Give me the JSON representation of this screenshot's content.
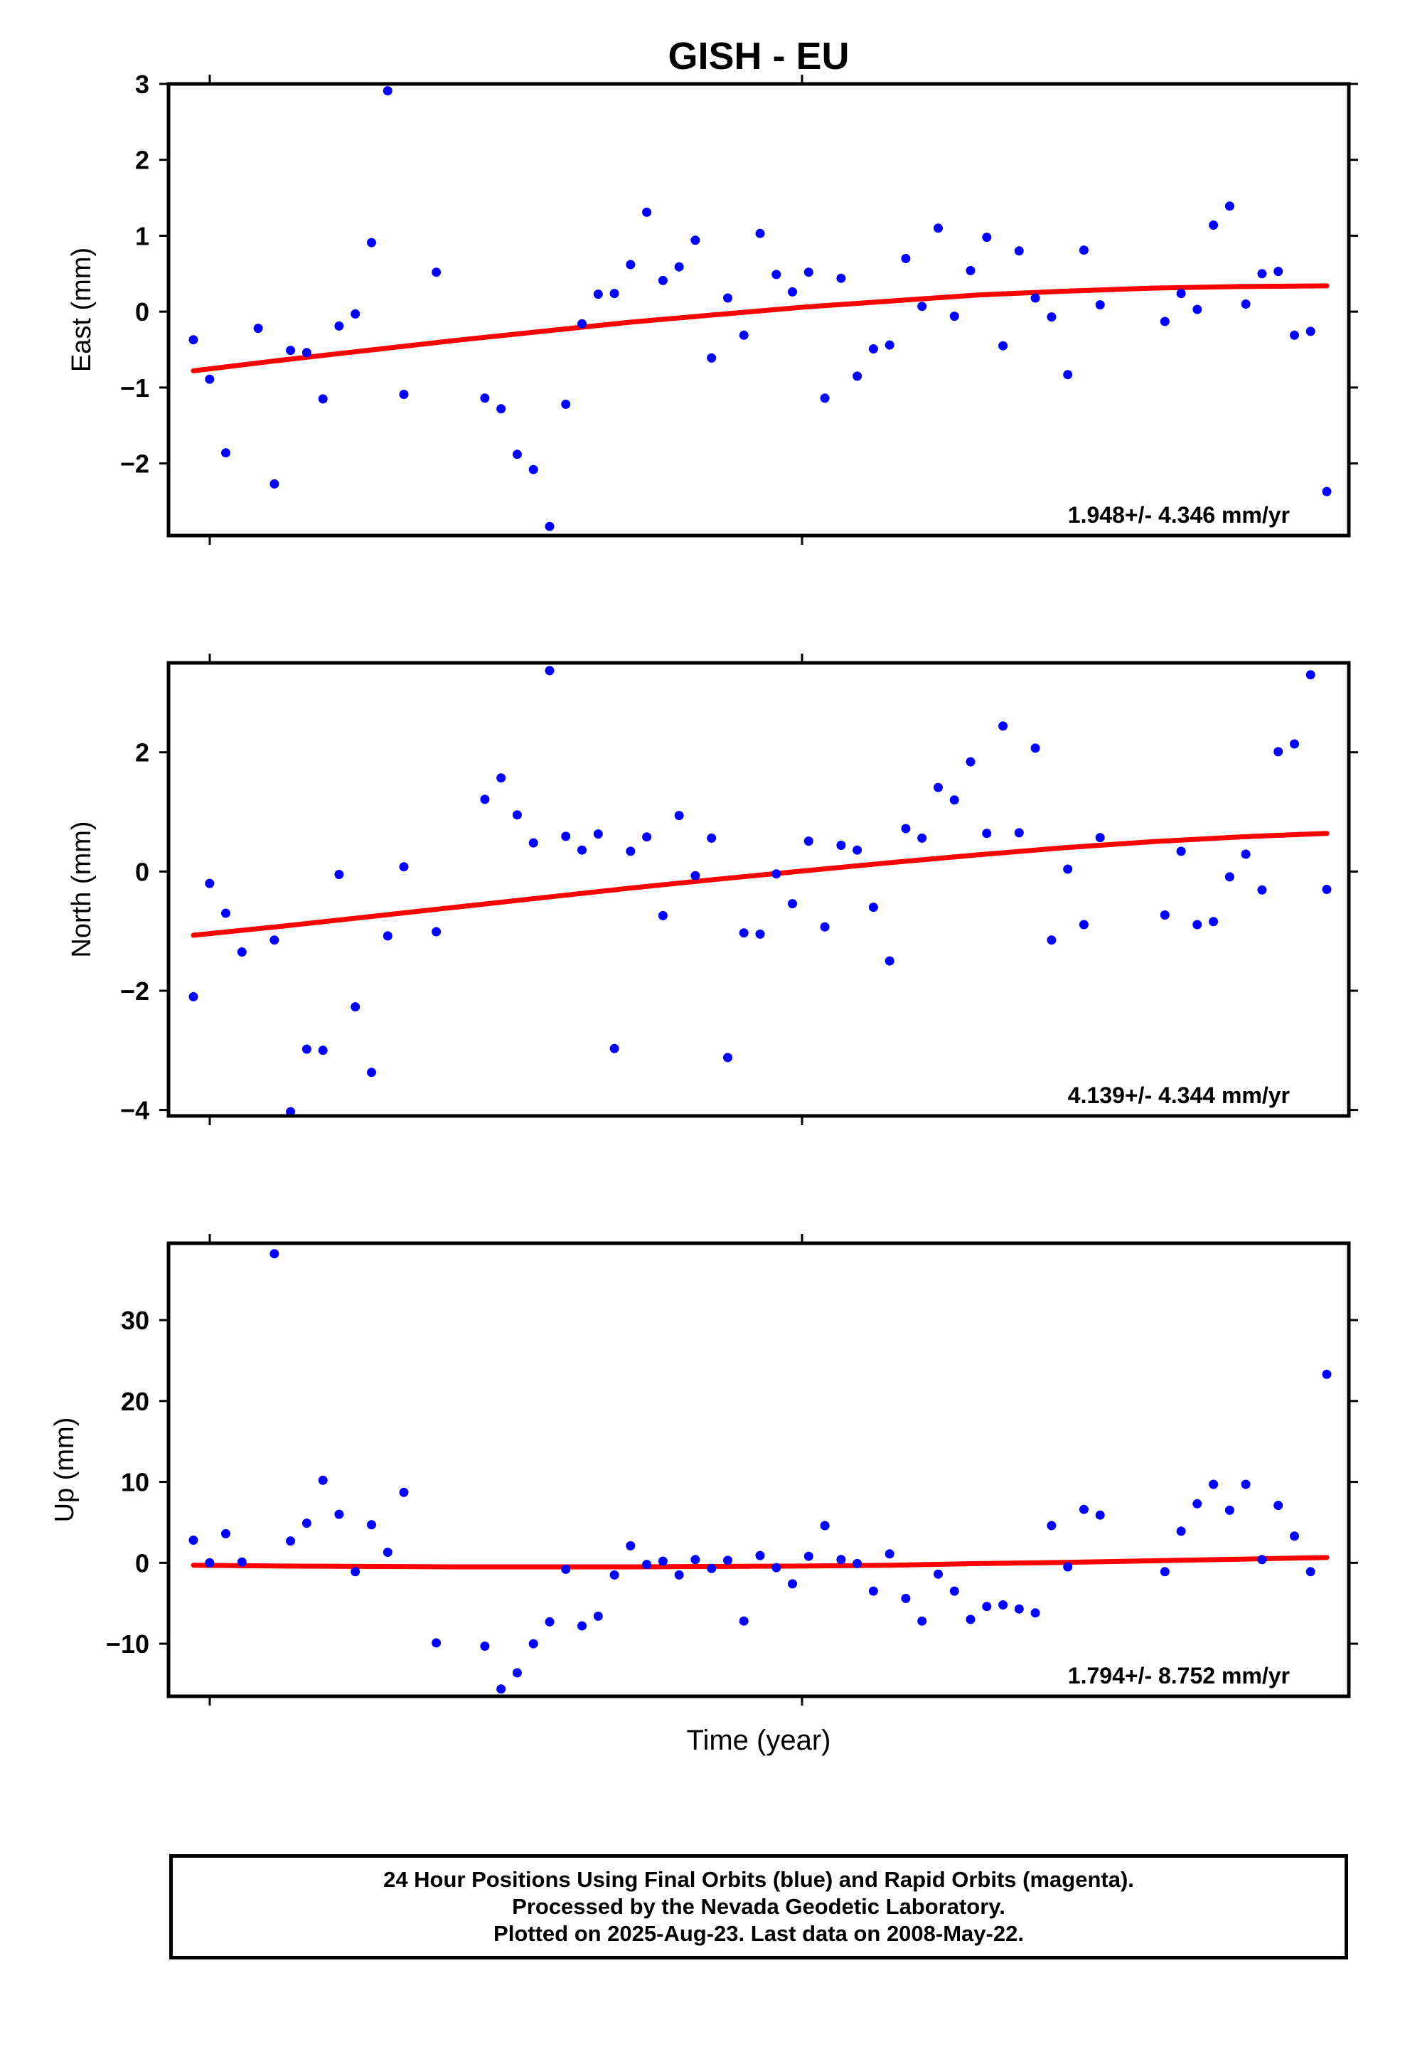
{
  "chart_data": {
    "type": "scatter",
    "title": "GISH - EU",
    "xlabel": "Time (year)",
    "x_ticks": [
      "",
      ""
    ],
    "colors": {
      "points": "#0000ff",
      "trend": "#ff0000",
      "frame": "#000000"
    },
    "grid": false,
    "panels": [
      {
        "name": "east",
        "ylabel": "East (mm)",
        "ylim": [
          -2.95,
          3.0
        ],
        "yticks": [
          3,
          2,
          1,
          0,
          -1,
          -2
        ],
        "ytick_labels": [
          "3",
          "2",
          "1",
          "0",
          "−1",
          "−2"
        ],
        "rate_label": "1.948+/- 4.346 mm/yr",
        "trend": [
          -0.78,
          -0.64,
          -0.51,
          -0.38,
          -0.26,
          -0.14,
          -0.04,
          0.06,
          0.14,
          0.22,
          0.27,
          0.31,
          0.33,
          0.34
        ],
        "values": [
          -0.37,
          -0.89,
          -1.86,
          null,
          -0.22,
          -2.27,
          -0.51,
          -0.54,
          -1.15,
          -0.19,
          -0.03,
          0.91,
          2.91,
          -1.09,
          null,
          0.52,
          null,
          null,
          -1.14,
          -1.28,
          -1.88,
          -2.08,
          -2.83,
          -1.22,
          -0.16,
          0.23,
          0.24,
          0.62,
          1.31,
          0.41,
          0.59,
          0.94,
          -0.61,
          0.18,
          -0.31,
          1.03,
          0.49,
          0.26,
          0.52,
          -1.14,
          0.44,
          -0.85,
          -0.49,
          -0.44,
          0.7,
          0.07,
          1.1,
          -0.06,
          0.54,
          0.98,
          -0.45,
          0.8,
          0.18,
          -0.07,
          -0.83,
          0.81,
          0.09,
          null,
          null,
          null,
          -0.13,
          0.24,
          0.03,
          1.14,
          1.39,
          0.1,
          0.5,
          0.53,
          -0.31,
          -0.26,
          -2.37
        ]
      },
      {
        "name": "north",
        "ylabel": "North (mm)",
        "ylim": [
          -4.1,
          3.5
        ],
        "yticks": [
          2,
          0,
          -2,
          -4
        ],
        "ytick_labels": [
          "2",
          "0",
          "−2",
          "−4"
        ],
        "rate_label": "4.139+/- 4.344 mm/yr",
        "trend": [
          -1.07,
          -0.92,
          -0.76,
          -0.6,
          -0.44,
          -0.28,
          -0.13,
          0.01,
          0.15,
          0.28,
          0.4,
          0.5,
          0.58,
          0.64
        ],
        "values": [
          -2.1,
          -0.2,
          -0.7,
          -1.35,
          null,
          -1.15,
          -4.03,
          -2.98,
          -3.0,
          -0.05,
          -2.27,
          -3.37,
          -1.08,
          0.08,
          null,
          -1.01,
          null,
          null,
          1.21,
          1.57,
          0.95,
          0.48,
          3.37,
          0.59,
          0.36,
          0.63,
          -2.97,
          0.34,
          0.58,
          -0.74,
          0.94,
          -0.07,
          0.56,
          -3.12,
          -1.03,
          -1.05,
          -0.04,
          -0.54,
          0.51,
          -0.93,
          0.44,
          0.36,
          -0.6,
          -1.5,
          0.72,
          0.56,
          1.41,
          1.2,
          1.84,
          0.64,
          2.44,
          0.65,
          2.07,
          -1.15,
          0.04,
          -0.89,
          0.57,
          null,
          null,
          null,
          -0.73,
          0.34,
          -0.89,
          -0.84,
          -0.09,
          0.29,
          -0.31,
          2.01,
          2.14,
          3.3,
          -0.3
        ]
      },
      {
        "name": "up",
        "ylabel": "Up (mm)",
        "ylim": [
          -16.5,
          39.5
        ],
        "yticks": [
          30,
          20,
          10,
          0,
          -10
        ],
        "ytick_labels": [
          "30",
          "20",
          "10",
          "0",
          "−10"
        ],
        "rate_label": "1.794+/- 8.752 mm/yr",
        "trend": [
          -0.3,
          -0.4,
          -0.45,
          -0.5,
          -0.5,
          -0.5,
          -0.45,
          -0.4,
          -0.3,
          -0.1,
          0.05,
          0.25,
          0.45,
          0.65
        ],
        "values": [
          2.8,
          0.0,
          3.6,
          0.1,
          null,
          38.2,
          2.7,
          4.9,
          10.2,
          6.0,
          -1.1,
          4.7,
          1.3,
          8.7,
          null,
          -9.9,
          null,
          null,
          -10.3,
          -15.6,
          -13.6,
          -10.0,
          -7.3,
          -0.8,
          -7.8,
          -6.6,
          -1.5,
          2.1,
          -0.2,
          0.2,
          -1.5,
          0.4,
          -0.7,
          0.3,
          -7.2,
          0.9,
          -0.6,
          -2.6,
          0.8,
          4.6,
          0.4,
          -0.1,
          -3.5,
          1.1,
          -4.4,
          -7.2,
          -1.4,
          -3.5,
          -7.0,
          -5.4,
          -5.2,
          -5.7,
          -6.2,
          4.6,
          -0.5,
          6.6,
          5.9,
          null,
          null,
          null,
          -1.1,
          3.9,
          7.3,
          9.7,
          6.5,
          9.7,
          0.4,
          7.1,
          3.3,
          -1.1,
          23.3
        ]
      }
    ]
  },
  "caption": {
    "line1": "24 Hour Positions Using Final Orbits (blue) and Rapid Orbits (magenta).",
    "line2": "Processed by the Nevada Geodetic Laboratory.",
    "line3": "Plotted on 2025-Aug-23. Last data on 2008-May-22."
  }
}
